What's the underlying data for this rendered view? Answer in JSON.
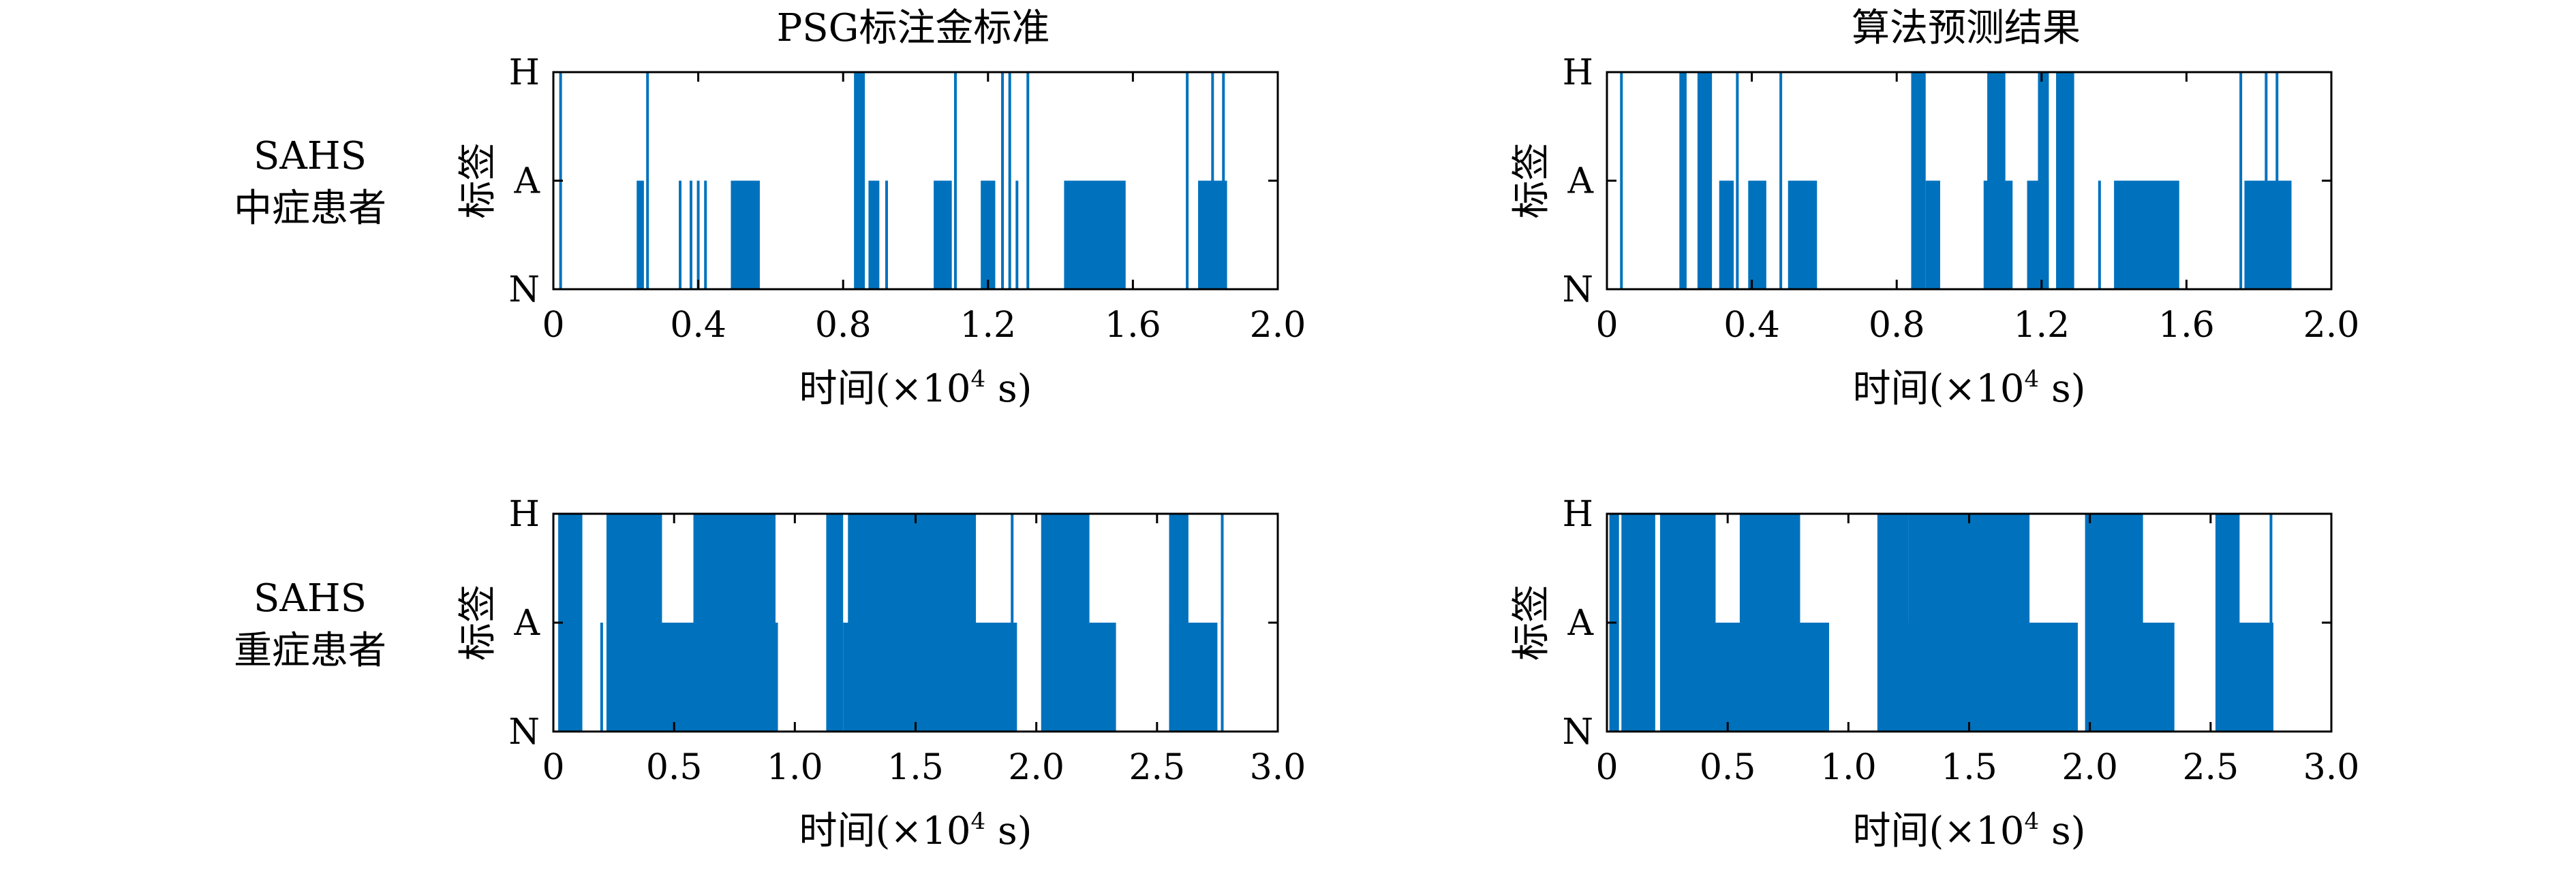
{
  "column_titles": [
    "PSG标注金标准",
    "算法预测结果"
  ],
  "row_labels": [
    {
      "line1": "SAHS",
      "line2": "中症患者"
    },
    {
      "line1": "SAHS",
      "line2": "重症患者"
    }
  ],
  "series_color": "#0072BD",
  "chart_data": [
    {
      "type": "line",
      "title": "PSG标注金标准",
      "ylabel": "标签",
      "xlabel": "时间(×10⁴ s)",
      "xlabel_main": "时间(×10",
      "xlabel_sup": "4",
      "xlabel_tail": " s)",
      "xlim": [
        0,
        2.0
      ],
      "xticks": [
        0,
        0.4,
        0.8,
        1.2,
        1.6,
        2.0
      ],
      "xtick_labels": [
        "0",
        "0.4",
        "0.8",
        "1.2",
        "1.6",
        "2.0"
      ],
      "ylevels": [
        "N",
        "A",
        "H"
      ],
      "events": [
        {
          "x": 0.02,
          "level": "H"
        },
        {
          "x": 0.23,
          "x2": 0.25,
          "level": "A"
        },
        {
          "x": 0.26,
          "level": "H"
        },
        {
          "x": 0.35,
          "level": "A"
        },
        {
          "x": 0.38,
          "level": "A"
        },
        {
          "x": 0.4,
          "level": "A"
        },
        {
          "x": 0.42,
          "level": "A"
        },
        {
          "x": 0.49,
          "x2": 0.57,
          "level": "A"
        },
        {
          "x": 0.83,
          "x2": 0.86,
          "level": "H"
        },
        {
          "x": 0.87,
          "x2": 0.9,
          "level": "A"
        },
        {
          "x": 0.92,
          "level": "A"
        },
        {
          "x": 1.05,
          "x2": 1.1,
          "level": "A"
        },
        {
          "x": 1.11,
          "level": "H"
        },
        {
          "x": 1.18,
          "x2": 1.22,
          "level": "A"
        },
        {
          "x": 1.24,
          "level": "H"
        },
        {
          "x": 1.26,
          "level": "H"
        },
        {
          "x": 1.28,
          "level": "A"
        },
        {
          "x": 1.31,
          "level": "H"
        },
        {
          "x": 1.41,
          "x2": 1.58,
          "level": "A"
        },
        {
          "x": 1.75,
          "level": "H"
        },
        {
          "x": 1.78,
          "x2": 1.86,
          "level": "A"
        },
        {
          "x": 1.82,
          "level": "H"
        },
        {
          "x": 1.85,
          "level": "H"
        }
      ]
    },
    {
      "type": "line",
      "title": "算法预测结果",
      "ylabel": "标签",
      "xlabel": "时间(×10⁴ s)",
      "xlabel_main": "时间(×10",
      "xlabel_sup": "4",
      "xlabel_tail": " s)",
      "xlim": [
        0,
        2.0
      ],
      "xticks": [
        0,
        0.4,
        0.8,
        1.2,
        1.6,
        2.0
      ],
      "xtick_labels": [
        "0",
        "0.4",
        "0.8",
        "1.2",
        "1.6",
        "2.0"
      ],
      "ylevels": [
        "N",
        "A",
        "H"
      ],
      "events": [
        {
          "x": 0.04,
          "level": "H"
        },
        {
          "x": 0.2,
          "x2": 0.22,
          "level": "H"
        },
        {
          "x": 0.25,
          "x2": 0.29,
          "level": "H"
        },
        {
          "x": 0.31,
          "x2": 0.35,
          "level": "A"
        },
        {
          "x": 0.36,
          "level": "H"
        },
        {
          "x": 0.39,
          "x2": 0.44,
          "level": "A"
        },
        {
          "x": 0.48,
          "level": "H"
        },
        {
          "x": 0.5,
          "x2": 0.58,
          "level": "A"
        },
        {
          "x": 0.84,
          "x2": 0.88,
          "level": "H"
        },
        {
          "x": 0.88,
          "x2": 0.92,
          "level": "A"
        },
        {
          "x": 1.04,
          "x2": 1.12,
          "level": "A"
        },
        {
          "x": 1.05,
          "x2": 1.1,
          "level": "H"
        },
        {
          "x": 1.16,
          "x2": 1.22,
          "level": "A"
        },
        {
          "x": 1.19,
          "x2": 1.22,
          "level": "H"
        },
        {
          "x": 1.24,
          "x2": 1.29,
          "level": "H"
        },
        {
          "x": 1.36,
          "level": "A"
        },
        {
          "x": 1.4,
          "x2": 1.58,
          "level": "A"
        },
        {
          "x": 1.75,
          "level": "H"
        },
        {
          "x": 1.76,
          "x2": 1.89,
          "level": "A"
        },
        {
          "x": 1.82,
          "level": "H"
        },
        {
          "x": 1.85,
          "level": "H"
        }
      ]
    },
    {
      "type": "line",
      "ylabel": "标签",
      "xlabel": "时间(×10⁴ s)",
      "xlabel_main": "时间(×10",
      "xlabel_sup": "4",
      "xlabel_tail": " s)",
      "xlim": [
        0,
        3.0
      ],
      "xticks": [
        0,
        0.5,
        1.0,
        1.5,
        2.0,
        2.5,
        3.0
      ],
      "xtick_labels": [
        "0",
        "0.5",
        "1.0",
        "1.5",
        "2.0",
        "2.5",
        "3.0"
      ],
      "ylevels": [
        "N",
        "A",
        "H"
      ],
      "events": [
        {
          "x": 0.02,
          "x2": 0.12,
          "level": "H"
        },
        {
          "x": 0.2,
          "level": "A"
        },
        {
          "x": 0.22,
          "x2": 0.45,
          "level": "H"
        },
        {
          "x": 0.22,
          "x2": 0.6,
          "level": "A"
        },
        {
          "x": 0.58,
          "x2": 0.92,
          "level": "H"
        },
        {
          "x": 0.61,
          "x2": 0.93,
          "level": "A"
        },
        {
          "x": 1.13,
          "x2": 1.2,
          "level": "H"
        },
        {
          "x": 1.2,
          "x2": 1.45,
          "level": "A"
        },
        {
          "x": 1.22,
          "x2": 1.75,
          "level": "H"
        },
        {
          "x": 1.45,
          "x2": 1.92,
          "level": "A"
        },
        {
          "x": 1.9,
          "level": "H"
        },
        {
          "x": 2.02,
          "x2": 2.22,
          "level": "H"
        },
        {
          "x": 2.07,
          "x2": 2.33,
          "level": "A"
        },
        {
          "x": 2.55,
          "x2": 2.63,
          "level": "H"
        },
        {
          "x": 2.55,
          "x2": 2.75,
          "level": "A"
        },
        {
          "x": 2.77,
          "level": "H"
        }
      ]
    },
    {
      "type": "line",
      "ylabel": "标签",
      "xlabel": "时间(×10⁴ s)",
      "xlabel_main": "时间(×10",
      "xlabel_sup": "4",
      "xlabel_tail": " s)",
      "xlim": [
        0,
        3.0
      ],
      "xticks": [
        0,
        0.5,
        1.0,
        1.5,
        2.0,
        2.5,
        3.0
      ],
      "xtick_labels": [
        "0",
        "0.5",
        "1.0",
        "1.5",
        "2.0",
        "2.5",
        "3.0"
      ],
      "ylevels": [
        "N",
        "A",
        "H"
      ],
      "events": [
        {
          "x": 0.01,
          "x2": 0.05,
          "level": "H"
        },
        {
          "x": 0.06,
          "x2": 0.2,
          "level": "H"
        },
        {
          "x": 0.22,
          "x2": 0.45,
          "level": "H"
        },
        {
          "x": 0.28,
          "x2": 0.6,
          "level": "A"
        },
        {
          "x": 0.55,
          "x2": 0.8,
          "level": "H"
        },
        {
          "x": 0.6,
          "x2": 0.92,
          "level": "A"
        },
        {
          "x": 1.12,
          "x2": 1.25,
          "level": "H"
        },
        {
          "x": 1.2,
          "x2": 1.5,
          "level": "A"
        },
        {
          "x": 1.25,
          "x2": 1.75,
          "level": "H"
        },
        {
          "x": 1.45,
          "x2": 1.95,
          "level": "A"
        },
        {
          "x": 1.98,
          "x2": 2.22,
          "level": "H"
        },
        {
          "x": 2.05,
          "x2": 2.35,
          "level": "A"
        },
        {
          "x": 2.52,
          "x2": 2.62,
          "level": "H"
        },
        {
          "x": 2.55,
          "x2": 2.76,
          "level": "A"
        },
        {
          "x": 2.75,
          "level": "H"
        }
      ]
    }
  ]
}
